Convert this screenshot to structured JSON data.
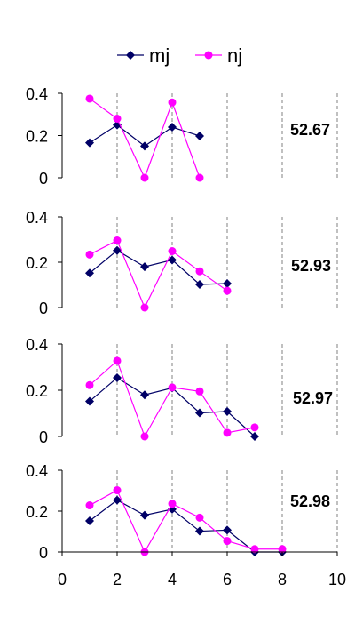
{
  "chart_data": {
    "type": "line",
    "legend": {
      "placement": "top-center",
      "entries": [
        {
          "name": "mj",
          "color": "#000066",
          "marker": "diamond"
        },
        {
          "name": "nj",
          "color": "#ff00ff",
          "marker": "circle"
        }
      ]
    },
    "xlim": [
      0,
      10
    ],
    "xticks": [
      "0",
      "2",
      "4",
      "6",
      "8",
      "10"
    ],
    "ylim": [
      0,
      0.4
    ],
    "yticks": [
      "0",
      "0.2",
      "0.4"
    ],
    "grid": "dashed vertical lines at even x values",
    "panels": [
      {
        "annotation": "52.67",
        "series": [
          {
            "name": "mj",
            "x": [
              1,
              2,
              3,
              4,
              5
            ],
            "values": [
              0.166,
              0.25,
              0.15,
              0.24,
              0.198
            ]
          },
          {
            "name": "nj",
            "x": [
              1,
              2,
              3,
              4,
              5
            ],
            "values": [
              0.375,
              0.28,
              0.0,
              0.357,
              0.0
            ]
          }
        ]
      },
      {
        "annotation": "52.93",
        "series": [
          {
            "name": "mj",
            "x": [
              1,
              2,
              3,
              4,
              5,
              6
            ],
            "values": [
              0.152,
              0.252,
              0.18,
              0.21,
              0.102,
              0.106
            ]
          },
          {
            "name": "nj",
            "x": [
              1,
              2,
              3,
              4,
              5,
              6
            ],
            "values": [
              0.234,
              0.296,
              0.0,
              0.249,
              0.16,
              0.074
            ]
          }
        ]
      },
      {
        "annotation": "52.97",
        "series": [
          {
            "name": "mj",
            "x": [
              1,
              2,
              3,
              4,
              5,
              6,
              7
            ],
            "values": [
              0.152,
              0.254,
              0.18,
              0.21,
              0.102,
              0.108,
              0.0
            ]
          },
          {
            "name": "nj",
            "x": [
              1,
              2,
              3,
              4,
              5,
              6,
              7
            ],
            "values": [
              0.222,
              0.327,
              0.0,
              0.212,
              0.195,
              0.016,
              0.039
            ]
          }
        ]
      },
      {
        "annotation": "52.98",
        "series": [
          {
            "name": "mj",
            "x": [
              1,
              2,
              3,
              4,
              5,
              6,
              7,
              8
            ],
            "values": [
              0.152,
              0.254,
              0.18,
              0.209,
              0.102,
              0.107,
              0.0,
              0.0
            ]
          },
          {
            "name": "nj",
            "x": [
              1,
              2,
              3,
              4,
              5,
              6,
              7,
              8
            ],
            "values": [
              0.228,
              0.302,
              0.0,
              0.236,
              0.168,
              0.054,
              0.014,
              0.014
            ]
          }
        ]
      }
    ]
  }
}
